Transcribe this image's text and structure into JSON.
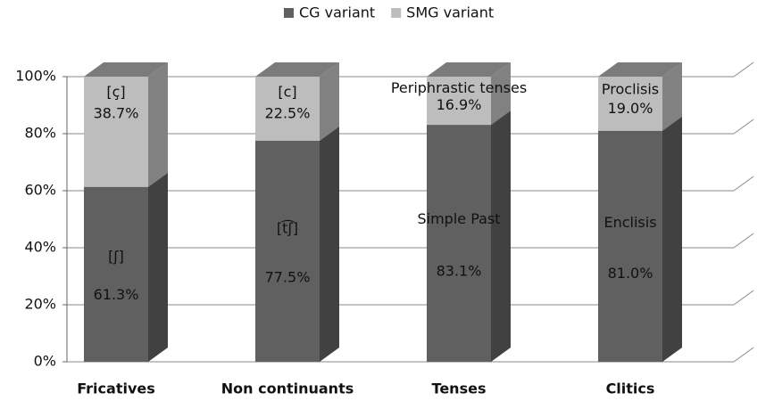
{
  "chart_data": {
    "type": "stacked_bar_3d",
    "categories": [
      "Fricatives",
      "Non continuants",
      "Tenses",
      "Clitics"
    ],
    "series": [
      {
        "name": "CG variant",
        "color": "#606060",
        "values": [
          61.3,
          77.5,
          83.1,
          81.0
        ],
        "value_labels": [
          "61.3%",
          "77.5%",
          "83.1%",
          "81.0%"
        ],
        "annotations": [
          "[ʃ]",
          "[t͡ʃ]",
          "Simple Past",
          "Enclisis"
        ]
      },
      {
        "name": "SMG variant",
        "color": "#bdbdbd",
        "values": [
          38.7,
          22.5,
          16.9,
          19.0
        ],
        "value_labels": [
          "38.7%",
          "22.5%",
          "16.9%",
          "19.0%"
        ],
        "annotations": [
          "[ç]",
          "[c]",
          "Periphrastic tenses",
          "Proclisis"
        ]
      }
    ],
    "ylim": [
      0,
      100
    ],
    "yticks": [
      {
        "value": 0,
        "label": "0%"
      },
      {
        "value": 20,
        "label": "20%"
      },
      {
        "value": 40,
        "label": "40%"
      },
      {
        "value": 60,
        "label": "60%"
      },
      {
        "value": 80,
        "label": "80%"
      },
      {
        "value": 100,
        "label": "100%"
      }
    ],
    "grid": true,
    "legend": "top"
  }
}
